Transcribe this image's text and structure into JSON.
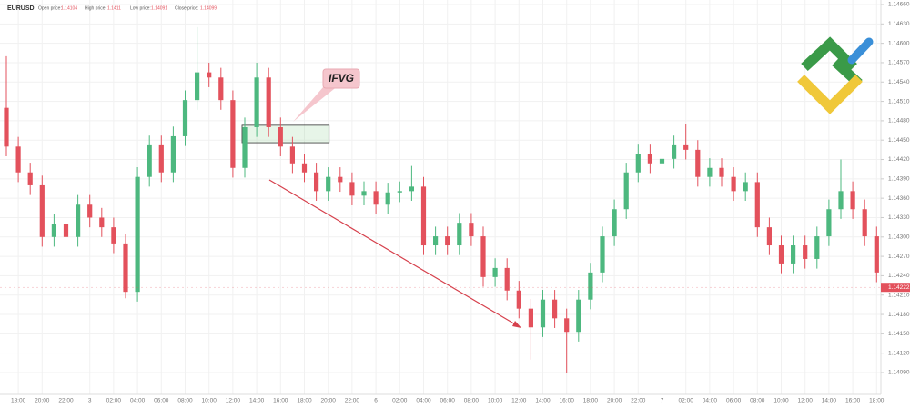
{
  "chart_data": {
    "type": "candlestick",
    "symbol": "EURUSD",
    "header": [
      {
        "label": "Open price:",
        "value": 1.14104
      },
      {
        "label": "High price:",
        "value": 1.1411
      },
      {
        "label": "Low price:",
        "value": 1.14091
      },
      {
        "label": "Close price:",
        "value": 1.14099
      }
    ],
    "categories": [
      null,
      "18:00",
      null,
      "20:00",
      null,
      "22:00",
      null,
      "3",
      null,
      "02:00",
      null,
      "04:00",
      null,
      "06:00",
      null,
      "08:00",
      null,
      "10:00",
      null,
      "12:00",
      null,
      "14:00",
      null,
      "16:00",
      null,
      "18:00",
      null,
      "20:00",
      null,
      "22:00",
      null,
      "6",
      null,
      "02:00",
      null,
      "04:00",
      null,
      "06:00",
      null,
      "08:00",
      null,
      "10:00",
      null,
      "12:00",
      null,
      "14:00",
      null,
      "16:00",
      null,
      "18:00",
      null,
      "20:00",
      null,
      "22:00",
      null,
      "7",
      null,
      "02:00",
      null,
      "04:00",
      null,
      "06:00",
      null,
      "08:00",
      null,
      "10:00",
      null,
      "12:00",
      null,
      "14:00",
      null,
      "16:00",
      null,
      "18:00"
    ],
    "open": [
      1.145,
      1.1444,
      1.144,
      1.1438,
      1.143,
      1.1432,
      1.143,
      1.1435,
      1.1433,
      1.14315,
      1.1429,
      1.14215,
      1.14393,
      1.14442,
      1.144,
      1.14456,
      1.14512,
      1.14555,
      1.14547,
      1.14512,
      1.14407,
      1.1447,
      1.14547,
      1.1447,
      1.1444,
      1.14414,
      1.144,
      1.14371,
      1.14393,
      1.14385,
      1.14364,
      1.14371,
      1.1435,
      1.14369,
      1.14371,
      1.14378,
      1.14287,
      1.14301,
      1.14287,
      1.14322,
      1.14301,
      1.14238,
      1.14252,
      1.14217,
      1.14189,
      1.1416,
      1.14203,
      1.14174,
      1.14153,
      1.14203,
      1.14245,
      1.14301,
      1.14343,
      1.144,
      1.14428,
      1.14414,
      1.14421,
      1.14442,
      1.14435,
      1.14393,
      1.14407,
      1.14393,
      1.14371,
      1.14385,
      1.14315,
      1.14287,
      1.14259,
      1.14287,
      1.14266,
      1.14301,
      1.14343,
      1.14371,
      1.14343,
      1.14301
    ],
    "high": [
      1.1458,
      1.14455,
      1.14415,
      1.14395,
      1.14335,
      1.14335,
      1.14365,
      1.14365,
      1.14345,
      1.1433,
      1.14305,
      1.14408,
      1.14457,
      1.14457,
      1.14471,
      1.14527,
      1.14625,
      1.1457,
      1.14562,
      1.14527,
      1.14485,
      1.1457,
      1.14562,
      1.14485,
      1.14455,
      1.14429,
      1.14415,
      1.14408,
      1.14408,
      1.144,
      1.14386,
      1.14386,
      1.14384,
      1.14386,
      1.1441,
      1.14393,
      1.14316,
      1.14316,
      1.14337,
      1.14337,
      1.14316,
      1.14267,
      1.14267,
      1.14232,
      1.14204,
      1.14218,
      1.14218,
      1.14189,
      1.14218,
      1.1426,
      1.14316,
      1.14358,
      1.14415,
      1.14443,
      1.14443,
      1.14436,
      1.14457,
      1.14475,
      1.1445,
      1.14422,
      1.14422,
      1.14408,
      1.144,
      1.144,
      1.1433,
      1.14302,
      1.14302,
      1.14302,
      1.14316,
      1.14358,
      1.1442,
      1.14386,
      1.14358,
      1.14316
    ],
    "low": [
      1.14425,
      1.14385,
      1.14365,
      1.14285,
      1.14285,
      1.14285,
      1.14285,
      1.14315,
      1.143,
      1.14275,
      1.14205,
      1.142,
      1.14378,
      1.14385,
      1.14385,
      1.14441,
      1.14497,
      1.14532,
      1.14497,
      1.14392,
      1.14392,
      1.14455,
      1.14455,
      1.14425,
      1.14399,
      1.14385,
      1.14356,
      1.14356,
      1.1437,
      1.14349,
      1.14349,
      1.14335,
      1.14335,
      1.14354,
      1.14356,
      1.14272,
      1.14272,
      1.14272,
      1.14272,
      1.14286,
      1.14223,
      1.14223,
      1.14202,
      1.14174,
      1.1411,
      1.14145,
      1.14159,
      1.1409,
      1.14138,
      1.14188,
      1.1423,
      1.14286,
      1.14328,
      1.14385,
      1.14399,
      1.14399,
      1.14406,
      1.1442,
      1.14378,
      1.14378,
      1.14378,
      1.14356,
      1.14356,
      1.143,
      1.14272,
      1.14244,
      1.14244,
      1.14251,
      1.14251,
      1.14286,
      1.14328,
      1.14328,
      1.14286,
      1.1423
    ],
    "close": [
      1.1444,
      1.144,
      1.1438,
      1.143,
      1.1432,
      1.143,
      1.1435,
      1.1433,
      1.14315,
      1.1429,
      1.14215,
      1.14393,
      1.14442,
      1.144,
      1.14456,
      1.14512,
      1.14555,
      1.14547,
      1.14512,
      1.14407,
      1.1447,
      1.14547,
      1.1447,
      1.1444,
      1.14414,
      1.144,
      1.14371,
      1.14393,
      1.14385,
      1.14364,
      1.14371,
      1.1435,
      1.14369,
      1.14371,
      1.14378,
      1.14287,
      1.14301,
      1.14287,
      1.14322,
      1.14301,
      1.14238,
      1.14252,
      1.14217,
      1.14189,
      1.1416,
      1.14203,
      1.14174,
      1.14153,
      1.14203,
      1.14245,
      1.14301,
      1.14343,
      1.144,
      1.14428,
      1.14414,
      1.14421,
      1.14442,
      1.14435,
      1.14393,
      1.14407,
      1.14393,
      1.14371,
      1.14385,
      1.14315,
      1.14287,
      1.14259,
      1.14287,
      1.14266,
      1.14301,
      1.14343,
      1.14371,
      1.14343,
      1.14301,
      1.14245
    ],
    "up_color": "#4db87f",
    "down_color": "#e3515c",
    "last_price": 1.14222,
    "ifvg": {
      "label": "IFVG",
      "top": 1.14473,
      "bottom": 1.14446
    },
    "ylim": [
      1.1409,
      1.1466
    ],
    "yticks": [
      {
        "value": 1.1466,
        "label": "1.14660"
      },
      {
        "value": 1.1463,
        "label": "1.14630"
      },
      {
        "value": 1.146,
        "label": "1.14600"
      },
      {
        "value": 1.1457,
        "label": "1.14570"
      },
      {
        "value": 1.1454,
        "label": "1.14540"
      },
      {
        "value": 1.1451,
        "label": "1.14510"
      },
      {
        "value": 1.1448,
        "label": "1.14480"
      },
      {
        "value": 1.1445,
        "label": "1.14450"
      },
      {
        "value": 1.1442,
        "label": "1.14420"
      },
      {
        "value": 1.1439,
        "label": "1.14390"
      },
      {
        "value": 1.1436,
        "label": "1.14360"
      },
      {
        "value": 1.1433,
        "label": "1.14330"
      },
      {
        "value": 1.143,
        "label": "1.14300"
      },
      {
        "value": 1.1427,
        "label": "1.14270"
      },
      {
        "value": 1.1424,
        "label": "1.14240"
      },
      {
        "value": 1.1421,
        "label": "1.14210"
      },
      {
        "value": 1.1418,
        "label": "1.14180"
      },
      {
        "value": 1.1415,
        "label": "1.14150"
      },
      {
        "value": 1.1412,
        "label": "1.14120"
      },
      {
        "value": 1.1409,
        "label": "1.14090"
      }
    ],
    "grid": true
  }
}
